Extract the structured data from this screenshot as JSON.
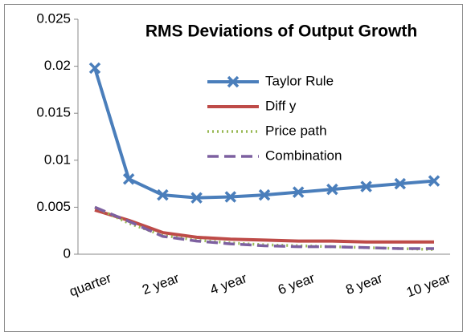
{
  "chart_data": {
    "type": "line",
    "title": "RMS Deviations of Output Growth",
    "categories": [
      "quarter",
      null,
      "2 year",
      null,
      "4 year",
      null,
      "6 year",
      null,
      "8 year",
      null,
      "10 year"
    ],
    "series": [
      {
        "name": "Taylor Rule",
        "color": "#4a7ebb",
        "dash": "solid",
        "marker": "x",
        "values": [
          0.0198,
          0.008,
          0.0063,
          0.006,
          0.0061,
          0.0063,
          0.0066,
          0.0069,
          0.0072,
          0.0075,
          0.0078
        ]
      },
      {
        "name": "Diff y",
        "color": "#be4b48",
        "dash": "solid",
        "values": [
          0.0047,
          0.0036,
          0.0023,
          0.0018,
          0.0016,
          0.0015,
          0.0014,
          0.0014,
          0.0013,
          0.0013,
          0.0013
        ]
      },
      {
        "name": "Price path",
        "color": "#98b954",
        "dash": "dotted",
        "values": [
          0.005,
          0.0033,
          0.002,
          0.0015,
          0.0012,
          0.001,
          0.0009,
          0.0008,
          0.0007,
          0.0006,
          0.0005
        ]
      },
      {
        "name": "Combination",
        "color": "#7d60a0",
        "dash": "dashed",
        "values": [
          0.005,
          0.0035,
          0.0019,
          0.0014,
          0.0011,
          0.0009,
          0.0008,
          0.0008,
          0.0007,
          0.0006,
          0.0006
        ]
      }
    ],
    "ylim": [
      0,
      0.025
    ],
    "yticks": [
      0,
      0.005,
      0.01,
      0.015,
      0.02,
      0.025
    ],
    "grid": false
  }
}
